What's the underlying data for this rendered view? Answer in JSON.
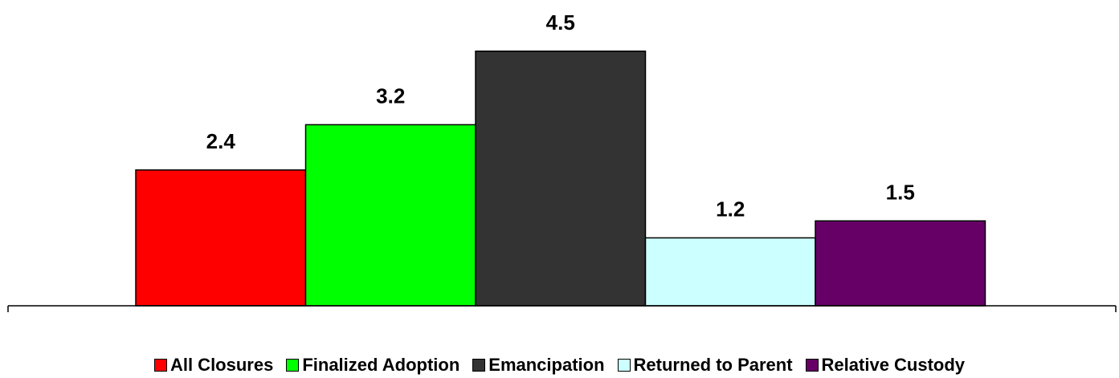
{
  "chart_data": {
    "type": "bar",
    "title": "",
    "xlabel": "",
    "ylabel": "",
    "ylim": [
      0,
      5
    ],
    "grid": false,
    "legend_position": "bottom",
    "series": [
      {
        "name": "All Closures",
        "value": 2.4,
        "label": "2.4",
        "color": "#ff0000"
      },
      {
        "name": "Finalized Adoption",
        "value": 3.2,
        "label": "3.2",
        "color": "#00ff00"
      },
      {
        "name": "Emancipation",
        "value": 4.5,
        "label": "4.5",
        "color": "#333333"
      },
      {
        "name": "Returned to Parent",
        "value": 1.2,
        "label": "1.2",
        "color": "#ccffff"
      },
      {
        "name": "Relative Custody",
        "value": 1.5,
        "label": "1.5",
        "color": "#660066"
      }
    ]
  }
}
